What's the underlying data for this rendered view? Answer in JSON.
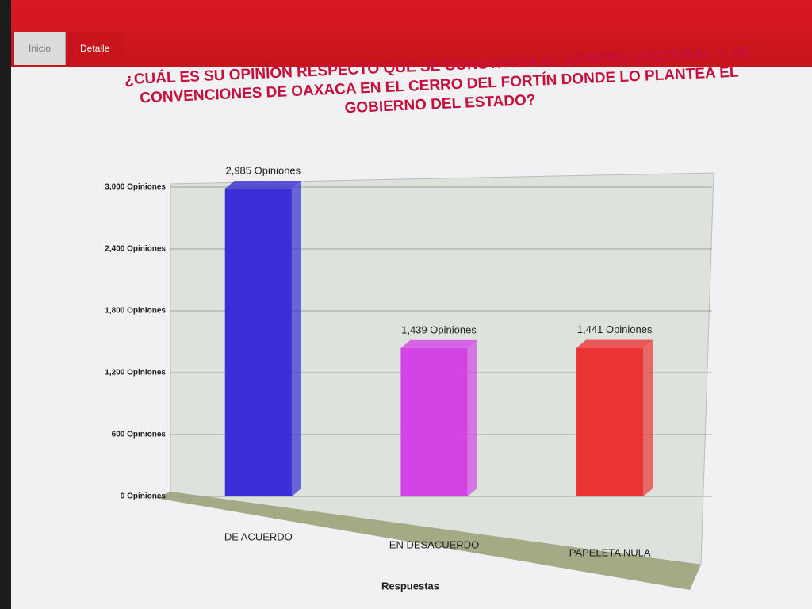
{
  "tabs": [
    "Inicio",
    "Detalle"
  ],
  "chart_data": {
    "type": "bar",
    "title": "¿CUÁL ES SU OPINIÓN RESPECTO QUE SE CONSTRUYA EL CENTRO CULTURAL Y DE CONVENCIONES DE OAXACA EN EL CERRO DEL FORTÍN DONDE LO PLANTEA EL GOBIERNO DEL ESTADO?",
    "x_label": "Respuestas",
    "categories": [
      "DE ACUERDO",
      "EN DESACUERDO",
      "PAPELETA NULA"
    ],
    "values": [
      2985,
      1439,
      1441
    ],
    "value_labels": [
      "2,985 Opiniones",
      "1,439 Opiniones",
      "1,441 Opiniones"
    ],
    "colors": [
      "#3b2ed6",
      "#d244e6",
      "#ea3434"
    ],
    "ylim": [
      0,
      3000
    ],
    "yticks": [
      {
        "value": 0,
        "label": "0 Opiniones"
      },
      {
        "value": 600,
        "label": "600 Opiniones"
      },
      {
        "value": 1200,
        "label": "1,200 Opiniones"
      },
      {
        "value": 1800,
        "label": "1,800 Opiniones"
      },
      {
        "value": 2400,
        "label": "2,400 Opiniones"
      },
      {
        "value": 3000,
        "label": "3,000 Opiniones"
      }
    ],
    "grid": true
  }
}
